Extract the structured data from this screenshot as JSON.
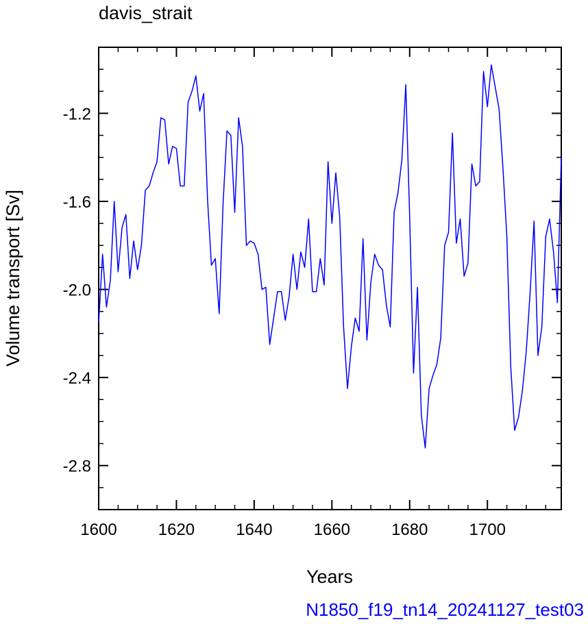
{
  "chart_data": {
    "type": "line",
    "title": "davis_strait",
    "xlabel": "Years",
    "ylabel": "Volume transport [Sv]",
    "footer": "N1850_f19_tn14_20241127_test03",
    "xlim": [
      1600,
      1719
    ],
    "ylim": [
      -3.0,
      -0.9
    ],
    "xticks": [
      1600,
      1620,
      1640,
      1660,
      1680,
      1700
    ],
    "xtick_labels": [
      "1600",
      "1620",
      "1640",
      "1660",
      "1680",
      "1700"
    ],
    "yticks": [
      -1.2,
      -1.6,
      -2.0,
      -2.4,
      -2.8
    ],
    "ytick_labels": [
      "-1.2",
      "-1.6",
      "-2.0",
      "-2.4",
      "-2.8"
    ],
    "grid": false,
    "series": [
      {
        "color": "#0000ff",
        "x": [
          1600,
          1601,
          1602,
          1603,
          1604,
          1605,
          1606,
          1607,
          1608,
          1609,
          1610,
          1611,
          1612,
          1613,
          1614,
          1615,
          1616,
          1617,
          1618,
          1619,
          1620,
          1621,
          1622,
          1623,
          1624,
          1625,
          1626,
          1627,
          1628,
          1629,
          1630,
          1631,
          1632,
          1633,
          1634,
          1635,
          1636,
          1637,
          1638,
          1639,
          1640,
          1641,
          1642,
          1643,
          1644,
          1645,
          1646,
          1647,
          1648,
          1649,
          1650,
          1651,
          1652,
          1653,
          1654,
          1655,
          1656,
          1657,
          1658,
          1659,
          1660,
          1661,
          1662,
          1663,
          1664,
          1665,
          1666,
          1667,
          1668,
          1669,
          1670,
          1671,
          1672,
          1673,
          1674,
          1675,
          1676,
          1677,
          1678,
          1679,
          1680,
          1681,
          1682,
          1683,
          1684,
          1685,
          1686,
          1687,
          1688,
          1689,
          1690,
          1691,
          1692,
          1693,
          1694,
          1695,
          1696,
          1697,
          1698,
          1699,
          1700,
          1701,
          1702,
          1703,
          1704,
          1705,
          1706,
          1707,
          1708,
          1709,
          1710,
          1711,
          1712,
          1713,
          1714,
          1715,
          1716,
          1717,
          1718,
          1719
        ],
        "y": [
          -2.15,
          -1.84,
          -2.08,
          -1.96,
          -1.6,
          -1.92,
          -1.72,
          -1.66,
          -1.95,
          -1.78,
          -1.91,
          -1.8,
          -1.55,
          -1.53,
          -1.47,
          -1.42,
          -1.22,
          -1.23,
          -1.43,
          -1.35,
          -1.36,
          -1.53,
          -1.53,
          -1.15,
          -1.1,
          -1.03,
          -1.19,
          -1.11,
          -1.59,
          -1.89,
          -1.86,
          -2.11,
          -1.61,
          -1.28,
          -1.3,
          -1.65,
          -1.22,
          -1.35,
          -1.8,
          -1.78,
          -1.79,
          -1.84,
          -2.0,
          -1.99,
          -2.25,
          -2.13,
          -2.01,
          -2.01,
          -2.14,
          -2.03,
          -1.84,
          -2.0,
          -1.83,
          -1.9,
          -1.68,
          -2.01,
          -2.01,
          -1.86,
          -1.98,
          -1.42,
          -1.7,
          -1.47,
          -1.67,
          -2.17,
          -2.45,
          -2.26,
          -2.13,
          -2.19,
          -1.77,
          -2.23,
          -1.97,
          -1.84,
          -1.89,
          -1.91,
          -2.07,
          -2.17,
          -1.65,
          -1.56,
          -1.41,
          -1.07,
          -1.67,
          -2.38,
          -1.99,
          -2.57,
          -2.72,
          -2.45,
          -2.39,
          -2.34,
          -2.22,
          -1.8,
          -1.74,
          -1.29,
          -1.79,
          -1.68,
          -1.94,
          -1.88,
          -1.43,
          -1.53,
          -1.51,
          -1.01,
          -1.17,
          -0.98,
          -1.08,
          -1.18,
          -1.45,
          -1.76,
          -2.35,
          -2.64,
          -2.58,
          -2.46,
          -2.28,
          -2.01,
          -1.69,
          -2.3,
          -2.17,
          -1.76,
          -1.68,
          -1.83,
          -2.06,
          -1.4
        ]
      }
    ]
  }
}
